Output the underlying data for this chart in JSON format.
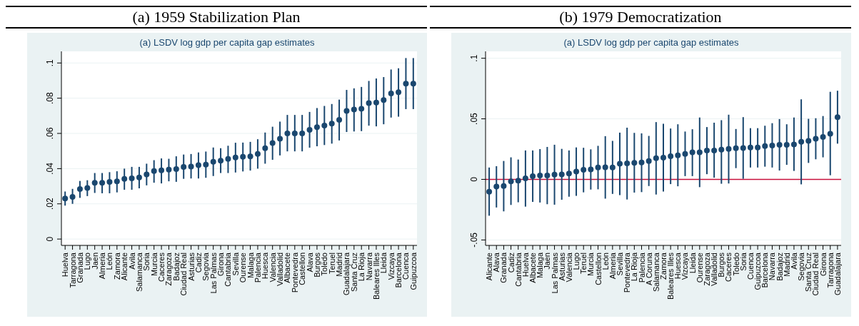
{
  "chart_data": [
    {
      "type": "scatter",
      "title": "(a)  1959 Stabilization Plan",
      "subtitle": "(a) LSDV log gdp per capita gap estimates",
      "categories": [
        "Huelva",
        "Tarragona",
        "Granada",
        "Lugo",
        "Jaen",
        "Almeria",
        "León",
        "Zamora",
        "Alicante",
        "Avila",
        "Salamanca",
        "Soria",
        "Murcia",
        "Caceres",
        "Zaragoza",
        "Badajoz",
        "Ciudad Real",
        "Asturias",
        "Cadiz",
        "Segovia",
        "Las Palmas",
        "Girona",
        "Cantabria",
        "Sevilla",
        "Ourense",
        "Malaga",
        "Palencia",
        "Huesca",
        "Valencia",
        "Valladolid",
        "Albacete",
        "Pontevedra",
        "Castellon",
        "Alava",
        "Burgos",
        "Toledo",
        "Teruel",
        "Madrid",
        "Guadalajara",
        "Santa Cruz",
        "La Rioja",
        "Navarra",
        "Baleares Illes",
        "Lleida",
        "Vizcaya",
        "Barcelona",
        "Cuenca",
        "Guipuzcoa"
      ],
      "series": [
        {
          "color": "#1a476f",
          "values": [
            0.023,
            0.024,
            0.0284,
            0.029,
            0.032,
            0.032,
            0.0325,
            0.0328,
            0.0342,
            0.0345,
            0.035,
            0.0367,
            0.0386,
            0.039,
            0.0394,
            0.0398,
            0.041,
            0.0412,
            0.042,
            0.0423,
            0.0439,
            0.0445,
            0.0455,
            0.0463,
            0.0467,
            0.0469,
            0.0484,
            0.0516,
            0.0545,
            0.057,
            0.06,
            0.06,
            0.06,
            0.062,
            0.0636,
            0.0645,
            0.0656,
            0.0677,
            0.0728,
            0.0736,
            0.074,
            0.0772,
            0.0775,
            0.0789,
            0.0827,
            0.0834,
            0.0883,
            0.0883
          ],
          "errors": [
            [
              0.019,
              0.027
            ],
            [
              0.02,
              0.0285
            ],
            [
              0.0234,
              0.033
            ],
            [
              0.0244,
              0.0334
            ],
            [
              0.0262,
              0.0375
            ],
            [
              0.026,
              0.0375
            ],
            [
              0.026,
              0.038
            ],
            [
              0.0265,
              0.0385
            ],
            [
              0.028,
              0.04
            ],
            [
              0.028,
              0.041
            ],
            [
              0.0288,
              0.041
            ],
            [
              0.0305,
              0.0428
            ],
            [
              0.032,
              0.0448
            ],
            [
              0.0316,
              0.0458
            ],
            [
              0.0328,
              0.0456
            ],
            [
              0.0325,
              0.047
            ],
            [
              0.0342,
              0.048
            ],
            [
              0.0344,
              0.0483
            ],
            [
              0.0344,
              0.0492
            ],
            [
              0.0348,
              0.0497
            ],
            [
              0.0358,
              0.052
            ],
            [
              0.0375,
              0.0516
            ],
            [
              0.0375,
              0.053
            ],
            [
              0.0378,
              0.0547
            ],
            [
              0.0384,
              0.0548
            ],
            [
              0.0389,
              0.0552
            ],
            [
              0.04,
              0.0567
            ],
            [
              0.0428,
              0.0605
            ],
            [
              0.045,
              0.0638
            ],
            [
              0.0475,
              0.0667
            ],
            [
              0.0498,
              0.0705
            ],
            [
              0.0498,
              0.0705
            ],
            [
              0.0498,
              0.0705
            ],
            [
              0.0519,
              0.0722
            ],
            [
              0.0527,
              0.0744
            ],
            [
              0.0534,
              0.0756
            ],
            [
              0.0542,
              0.0767
            ],
            [
              0.056,
              0.0792
            ],
            [
              0.0608,
              0.0847
            ],
            [
              0.0611,
              0.0856
            ],
            [
              0.0613,
              0.0864
            ],
            [
              0.0644,
              0.0898
            ],
            [
              0.064,
              0.0912
            ],
            [
              0.0652,
              0.092
            ],
            [
              0.069,
              0.0963
            ],
            [
              0.0695,
              0.097
            ],
            [
              0.0738,
              0.1028
            ],
            [
              0.0738,
              0.1028
            ]
          ]
        }
      ],
      "ylim": [
        -0.0036,
        0.1066
      ],
      "yticks": [
        0,
        {
          "value": 0.02,
          "label": ".02"
        },
        {
          "value": 0.04,
          "label": ".04"
        },
        {
          "value": 0.06,
          "label": ".06"
        },
        {
          "value": 0.08,
          "label": ".08"
        },
        {
          "value": 0.1,
          "label": ".1"
        }
      ],
      "grid": "y",
      "marker": "circle"
    },
    {
      "type": "scatter",
      "title": "(b)  1979 Democratization",
      "subtitle": "(a) LSDV log gdp per capita gap estimates",
      "categories": [
        "Alicante",
        "Alava",
        "Granada",
        "Cadiz",
        "Cantabria",
        "Huelva",
        "Albacete",
        "Malaga",
        "Jaen",
        "Las Palmas",
        "Asturias",
        "Valencia",
        "Lugo",
        "Teruel",
        "Murcia",
        "Castellon",
        "León",
        "Almeria",
        "Sevilla",
        "Pontevedra",
        "La Rioja",
        "Palencia",
        "A Coruna",
        "Salamanca",
        "Zamora",
        "Baleares Illes",
        "Huesca",
        "Vizcaya",
        "Lleida",
        "Ourense",
        "Zaragoza",
        "Valladolid",
        "Burgos",
        "Caceres",
        "Toledo",
        "Soria",
        "Cuenca",
        "Guipuzcoa",
        "Barcelona",
        "Navarra",
        "Badajoz",
        "Madrid",
        "Avila",
        "Segovia",
        "Santa Cruz",
        "Ciudad Real",
        "Girona",
        "Tarragona",
        "Guadalajara"
      ],
      "series": [
        {
          "color": "#1a476f",
          "values": [
            -0.0102,
            -0.0059,
            -0.0055,
            -0.0016,
            -0.0011,
            0.0009,
            0.0027,
            0.0032,
            0.0032,
            0.0039,
            0.0041,
            0.0048,
            0.0064,
            0.008,
            0.0082,
            0.0098,
            0.01,
            0.0098,
            0.013,
            0.0132,
            0.0136,
            0.0139,
            0.0152,
            0.0175,
            0.018,
            0.0191,
            0.0198,
            0.0211,
            0.0223,
            0.0223,
            0.0239,
            0.0239,
            0.0245,
            0.0252,
            0.0257,
            0.0259,
            0.0264,
            0.0264,
            0.0275,
            0.028,
            0.0286,
            0.0286,
            0.0289,
            0.0311,
            0.0318,
            0.0336,
            0.035,
            0.0377,
            0.0514
          ],
          "errors": [
            [
              -0.03,
              0.0098
            ],
            [
              -0.0232,
              0.0109
            ],
            [
              -0.0264,
              0.0152
            ],
            [
              -0.0211,
              0.0182
            ],
            [
              -0.0189,
              0.0164
            ],
            [
              -0.0225,
              0.0239
            ],
            [
              -0.0186,
              0.0239
            ],
            [
              -0.0191,
              0.025
            ],
            [
              -0.0205,
              0.0268
            ],
            [
              -0.0209,
              0.0286
            ],
            [
              -0.0168,
              0.0252
            ],
            [
              -0.0143,
              0.0239
            ],
            [
              -0.0136,
              0.0264
            ],
            [
              -0.0107,
              0.0261
            ],
            [
              -0.0084,
              0.0248
            ],
            [
              -0.0082,
              0.0277
            ],
            [
              -0.0159,
              0.0357
            ],
            [
              -0.012,
              0.0318
            ],
            [
              -0.013,
              0.0386
            ],
            [
              -0.0166,
              0.0427
            ],
            [
              -0.0109,
              0.0384
            ],
            [
              -0.0105,
              0.038
            ],
            [
              -0.0055,
              0.0359
            ],
            [
              -0.0125,
              0.0473
            ],
            [
              -0.01,
              0.0459
            ],
            [
              -0.0039,
              0.042
            ],
            [
              -0.0057,
              0.0455
            ],
            [
              0.0027,
              0.0395
            ],
            [
              0.0027,
              0.0414
            ],
            [
              -0.0064,
              0.0511
            ],
            [
              0.0043,
              0.0432
            ],
            [
              0.0014,
              0.0468
            ],
            [
              -0.0036,
              0.0489
            ],
            [
              -0.0034,
              0.0534
            ],
            [
              0.0093,
              0.0416
            ],
            [
              0.0005,
              0.0514
            ],
            [
              0.0098,
              0.0423
            ],
            [
              0.0098,
              0.0423
            ],
            [
              0.0105,
              0.0443
            ],
            [
              0.0098,
              0.0464
            ],
            [
              0.0073,
              0.0498
            ],
            [
              0.012,
              0.0455
            ],
            [
              0.007,
              0.0511
            ],
            [
              -0.0041,
              0.0661
            ],
            [
              0.0136,
              0.05
            ],
            [
              0.0166,
              0.0505
            ],
            [
              0.0182,
              0.0523
            ],
            [
              0.0034,
              0.0723
            ],
            [
              0.0295,
              0.0732
            ]
          ]
        }
      ],
      "ylim": [
        -0.0545,
        0.1057
      ],
      "yticks": [
        {
          "value": -0.05,
          "label": "-.05"
        },
        0,
        {
          "value": 0.05,
          "label": ".05"
        },
        {
          "value": 0.1,
          "label": ".1"
        }
      ],
      "grid": "y",
      "marker": "circle",
      "ref_lines": [
        {
          "axis": "y",
          "value": 0,
          "color": "#c8103c"
        }
      ]
    }
  ]
}
